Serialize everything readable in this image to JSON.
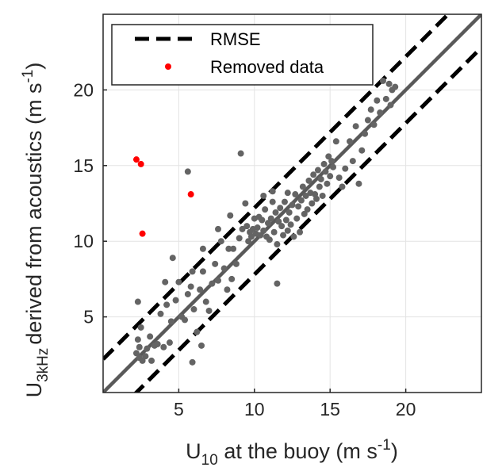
{
  "chart_data": {
    "type": "scatter",
    "xlabel_main": "U",
    "xlabel_sub": "10",
    "xlabel_rest": " at the buoy (m s",
    "xlabel_sup": "-1",
    "xlabel_end": ")",
    "ylabel_main": "U",
    "ylabel_sub": "3kHz",
    "ylabel_rest": "derived from acoustics (m s",
    "ylabel_sup": "-1",
    "ylabel_end": ")",
    "xlim": [
      0,
      25
    ],
    "ylim": [
      0,
      25
    ],
    "xticks": [
      5,
      10,
      15,
      20
    ],
    "yticks": [
      5,
      10,
      15,
      20
    ],
    "grid": true,
    "legend_position": "top-left",
    "legend": [
      {
        "label": "RMSE",
        "style": "dashed-line",
        "color": "#000000"
      },
      {
        "label": "Removed data",
        "style": "marker",
        "color": "#ff0000"
      }
    ],
    "rmse": 2.2,
    "fit_line_color": "#595959",
    "point_color": "#646464",
    "removed_color": "#ff0000",
    "series": [
      {
        "points": [
          [
            2.2,
            2.6
          ],
          [
            2.4,
            2.3
          ],
          [
            2.6,
            2.1
          ],
          [
            2.8,
            2.4
          ],
          [
            2.3,
            3.5
          ],
          [
            2.5,
            4.3
          ],
          [
            2.3,
            6.0
          ],
          [
            2.9,
            2.9
          ],
          [
            3.1,
            3.7
          ],
          [
            3.2,
            2.1
          ],
          [
            3.6,
            3.2
          ],
          [
            3.8,
            5.2
          ],
          [
            4.0,
            3.0
          ],
          [
            4.1,
            7.3
          ],
          [
            4.2,
            5.8
          ],
          [
            4.4,
            3.3
          ],
          [
            4.6,
            8.9
          ],
          [
            4.8,
            6.1
          ],
          [
            5.0,
            7.3
          ],
          [
            5.2,
            5.0
          ],
          [
            5.4,
            4.8
          ],
          [
            5.6,
            6.5
          ],
          [
            5.8,
            7.0
          ],
          [
            6.0,
            5.5
          ],
          [
            5.9,
            2.0
          ],
          [
            5.6,
            14.6
          ],
          [
            5.9,
            8.0
          ],
          [
            6.2,
            4.0
          ],
          [
            6.4,
            6.8
          ],
          [
            6.6,
            8.0
          ],
          [
            6.8,
            6.0
          ],
          [
            7.0,
            5.4
          ],
          [
            7.2,
            7.2
          ],
          [
            7.4,
            8.5
          ],
          [
            7.6,
            7.4
          ],
          [
            7.8,
            10.0
          ],
          [
            8.0,
            8.2
          ],
          [
            8.2,
            6.8
          ],
          [
            8.3,
            9.5
          ],
          [
            8.5,
            7.5
          ],
          [
            8.6,
            9.5
          ],
          [
            8.8,
            8.5
          ],
          [
            9.0,
            10.2
          ],
          [
            9.1,
            15.8
          ],
          [
            9.2,
            10.8
          ],
          [
            9.4,
            12.5
          ],
          [
            9.5,
            11.0
          ],
          [
            9.6,
            10.0
          ],
          [
            9.7,
            10.6
          ],
          [
            9.8,
            10.3
          ],
          [
            9.9,
            10.8
          ],
          [
            10.0,
            11.5
          ],
          [
            10.1,
            10.5
          ],
          [
            10.2,
            10.9
          ],
          [
            10.3,
            11.6
          ],
          [
            10.4,
            10.4
          ],
          [
            10.5,
            11.4
          ],
          [
            10.6,
            10.7
          ],
          [
            10.7,
            12.1
          ],
          [
            10.8,
            10.3
          ],
          [
            10.9,
            11.2
          ],
          [
            11.0,
            10.1
          ],
          [
            11.1,
            11.5
          ],
          [
            11.2,
            12.6
          ],
          [
            11.3,
            10.6
          ],
          [
            11.4,
            11.9
          ],
          [
            11.5,
            9.8
          ],
          [
            11.6,
            11.3
          ],
          [
            11.7,
            12.2
          ],
          [
            11.8,
            11.0
          ],
          [
            11.9,
            10.4
          ],
          [
            12.0,
            12.6
          ],
          [
            12.1,
            11.4
          ],
          [
            12.2,
            10.7
          ],
          [
            12.3,
            11.9
          ],
          [
            12.4,
            11.1
          ],
          [
            12.5,
            12.4
          ],
          [
            12.6,
            10.3
          ],
          [
            12.7,
            13.1
          ],
          [
            12.8,
            11.5
          ],
          [
            12.9,
            12.3
          ],
          [
            13.0,
            10.6
          ],
          [
            13.1,
            12.7
          ],
          [
            13.2,
            13.6
          ],
          [
            13.3,
            11.8
          ],
          [
            13.4,
            13.0
          ],
          [
            13.5,
            12.1
          ],
          [
            13.6,
            14.0
          ],
          [
            13.7,
            13.2
          ],
          [
            13.8,
            12.5
          ],
          [
            13.9,
            14.4
          ],
          [
            14.0,
            13.1
          ],
          [
            14.1,
            12.8
          ],
          [
            14.2,
            14.7
          ],
          [
            14.3,
            13.6
          ],
          [
            14.4,
            14.1
          ],
          [
            14.5,
            13.0
          ],
          [
            14.6,
            15.1
          ],
          [
            14.7,
            14.6
          ],
          [
            14.8,
            13.8
          ],
          [
            14.9,
            15.6
          ],
          [
            15.0,
            14.3
          ],
          [
            15.1,
            15.3
          ],
          [
            15.2,
            14.9
          ],
          [
            15.4,
            16.6
          ],
          [
            15.6,
            14.2
          ],
          [
            15.8,
            13.6
          ],
          [
            16.0,
            14.8
          ],
          [
            16.3,
            16.6
          ],
          [
            16.5,
            15.3
          ],
          [
            16.7,
            17.6
          ],
          [
            16.9,
            13.8
          ],
          [
            17.1,
            16.0
          ],
          [
            17.3,
            17.1
          ],
          [
            17.5,
            18.0
          ],
          [
            17.7,
            18.7
          ],
          [
            17.9,
            17.7
          ],
          [
            18.1,
            19.3
          ],
          [
            18.3,
            18.5
          ],
          [
            18.5,
            20.6
          ],
          [
            18.7,
            19.4
          ],
          [
            18.9,
            20.4
          ],
          [
            19.1,
            20.0
          ],
          [
            19.3,
            20.2
          ],
          [
            19.0,
            19.0
          ],
          [
            10.6,
            13.0
          ],
          [
            11.2,
            13.3
          ],
          [
            12.2,
            13.2
          ],
          [
            11.5,
            7.2
          ],
          [
            8.4,
            11.7
          ],
          [
            7.6,
            10.8
          ],
          [
            6.6,
            9.5
          ],
          [
            4.5,
            4.7
          ],
          [
            6.5,
            3.1
          ],
          [
            3.4,
            3.1
          ],
          [
            2.4,
            3.0
          ]
        ]
      },
      {
        "name": "Removed data",
        "points": [
          [
            2.2,
            15.4
          ],
          [
            2.5,
            15.1
          ],
          [
            2.6,
            10.5
          ],
          [
            5.8,
            13.1
          ]
        ]
      }
    ]
  }
}
